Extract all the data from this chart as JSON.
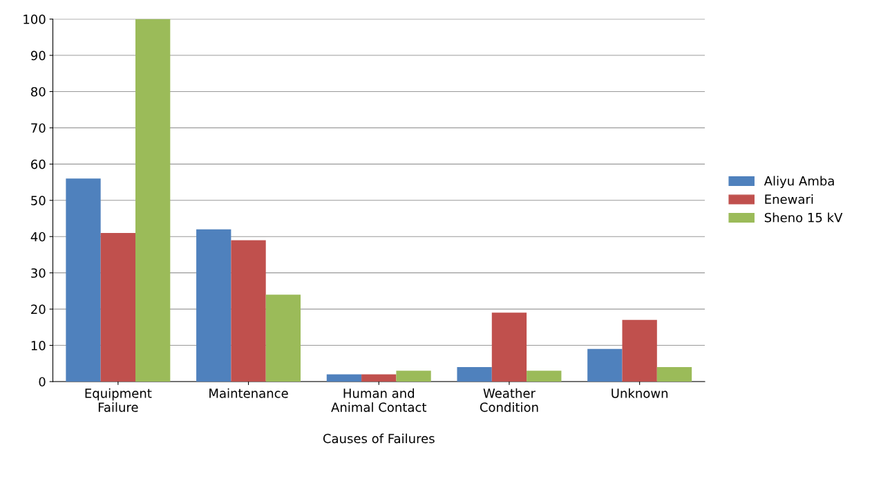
{
  "chart_data": {
    "type": "bar",
    "xlabel": "Causes of Failures",
    "categories": [
      "Equipment\nFailure",
      "Maintenance",
      "Human and\nAnimal Contact",
      "Weather\nCondition",
      "Unknown"
    ],
    "series": [
      {
        "name": "Aliyu Amba",
        "color": "#4f81bd",
        "values": [
          56,
          42,
          2,
          4,
          9
        ]
      },
      {
        "name": "Enewari",
        "color": "#c0504d",
        "values": [
          41,
          39,
          2,
          19,
          17
        ]
      },
      {
        "name": "Sheno 15 kV",
        "color": "#9bbb59",
        "values": [
          100,
          24,
          3,
          3,
          4
        ]
      }
    ],
    "ylim": [
      0,
      100
    ],
    "yticks": [
      0,
      10,
      20,
      30,
      40,
      50,
      60,
      70,
      80,
      90,
      100
    ],
    "grid": "y",
    "legend": "right"
  }
}
